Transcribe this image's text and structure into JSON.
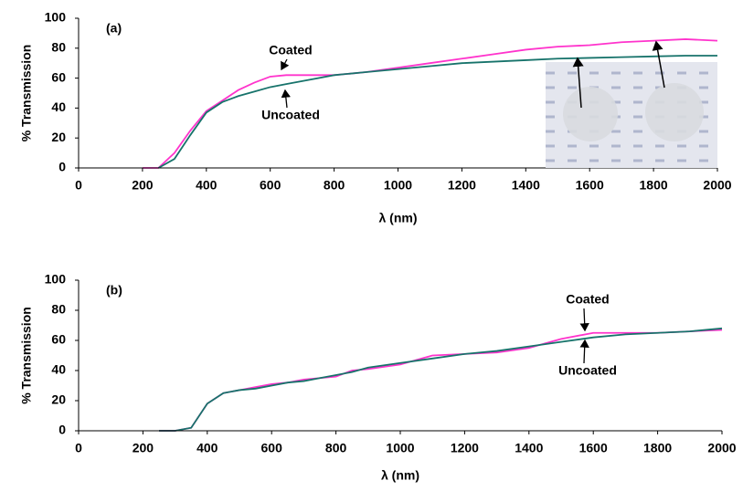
{
  "chart_data": [
    {
      "type": "line",
      "panel_label": "(a)",
      "x_label": "λ (nm)",
      "y_label": "% Transmission",
      "x": [
        200,
        250,
        300,
        350,
        400,
        450,
        500,
        550,
        600,
        650,
        700,
        750,
        800,
        850,
        900,
        1000,
        1100,
        1200,
        1300,
        1400,
        1500,
        1600,
        1700,
        1800,
        1900,
        2000
      ],
      "series": [
        {
          "name": "Coated",
          "color": "#ff33cc",
          "values": [
            0,
            0,
            10,
            25,
            38,
            45,
            52,
            57,
            61,
            62,
            62,
            62,
            62,
            63,
            64,
            67,
            70,
            73,
            76,
            79,
            81,
            82,
            84,
            85,
            86,
            85
          ]
        },
        {
          "name": "Uncoated",
          "color": "#17736b",
          "values": [
            null,
            0,
            6,
            22,
            37,
            44,
            48,
            51,
            54,
            56,
            58,
            60,
            62,
            63,
            64,
            66,
            68,
            70,
            71,
            72,
            73,
            73.5,
            74,
            74.5,
            75,
            75
          ]
        }
      ],
      "xlim": [
        0,
        2000
      ],
      "xticks": [
        0,
        200,
        400,
        600,
        800,
        1000,
        1200,
        1400,
        1600,
        1800,
        2000
      ],
      "ylim": [
        0,
        100
      ],
      "yticks": [
        0,
        20,
        40,
        60,
        80,
        100
      ]
    },
    {
      "type": "line",
      "panel_label": "(b)",
      "x_label": "λ (nm)",
      "y_label": "% Transmission",
      "x": [
        250,
        300,
        350,
        400,
        450,
        500,
        550,
        600,
        650,
        700,
        750,
        800,
        850,
        900,
        1000,
        1100,
        1200,
        1300,
        1400,
        1500,
        1600,
        1700,
        1800,
        1900,
        2000
      ],
      "series": [
        {
          "name": "Coated",
          "color": "#ff33cc",
          "values": [
            0,
            0,
            2,
            18,
            25,
            27,
            29,
            31,
            32,
            34,
            35,
            36,
            40,
            41,
            44,
            50,
            51,
            52,
            55,
            61,
            65,
            65,
            65,
            66,
            67
          ]
        },
        {
          "name": "Uncoated",
          "color": "#17736b",
          "values": [
            0,
            0,
            2,
            18,
            25,
            27,
            28,
            30,
            32,
            33,
            35,
            37,
            39,
            42,
            45,
            48,
            51,
            53,
            56,
            59,
            62,
            64,
            65,
            66,
            68
          ]
        }
      ],
      "xlim": [
        0,
        2000
      ],
      "xticks": [
        0,
        200,
        400,
        600,
        800,
        1000,
        1200,
        1400,
        1600,
        1800,
        2000
      ],
      "ylim": [
        0,
        100
      ],
      "yticks": [
        0,
        20,
        40,
        60,
        80,
        100
      ]
    }
  ]
}
